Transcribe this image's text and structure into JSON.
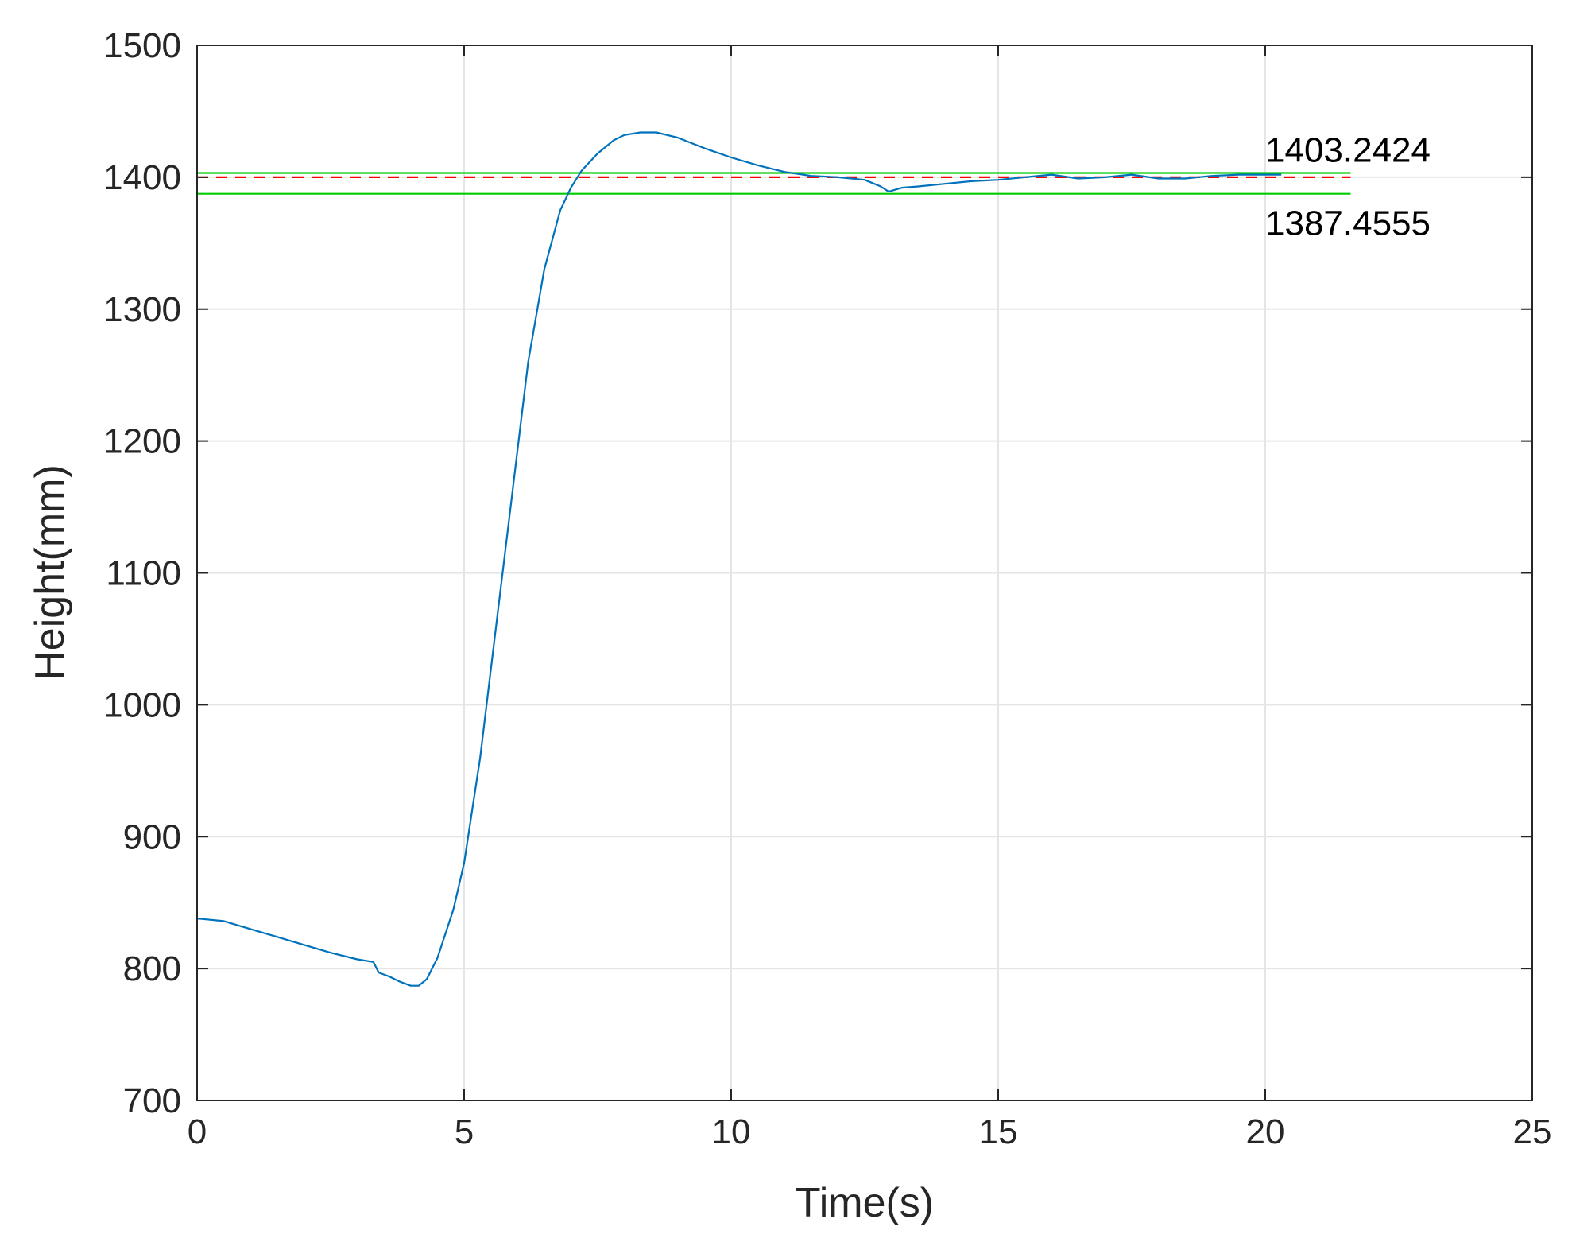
{
  "chart_data": {
    "type": "line",
    "title": "",
    "xlabel": "Time(s)",
    "ylabel": "Height(mm)",
    "xlim": [
      0,
      25
    ],
    "ylim": [
      700,
      1500
    ],
    "xticks": [
      0,
      5,
      10,
      15,
      20,
      25
    ],
    "yticks": [
      700,
      800,
      900,
      1000,
      1100,
      1200,
      1300,
      1400,
      1500
    ],
    "xtick_labels": [
      "0",
      "5",
      "10",
      "15",
      "20",
      "25"
    ],
    "ytick_labels": [
      "700",
      "800",
      "900",
      "1000",
      "1100",
      "1200",
      "1300",
      "1400",
      "1500"
    ],
    "grid": true,
    "legend": "none",
    "series": [
      {
        "color": "#0072BD",
        "style": "solid",
        "x": [
          0,
          0.5,
          1.0,
          1.5,
          2.0,
          2.5,
          3.0,
          3.3,
          3.4,
          3.6,
          3.8,
          4.0,
          4.15,
          4.3,
          4.5,
          4.8,
          5.0,
          5.3,
          5.6,
          5.9,
          6.2,
          6.5,
          6.8,
          7.0,
          7.2,
          7.5,
          7.8,
          8.0,
          8.3,
          8.6,
          9.0,
          9.5,
          10.0,
          10.5,
          11.0,
          11.5,
          12.0,
          12.5,
          12.8,
          12.95,
          13.2,
          13.5,
          14.0,
          14.5,
          15.0,
          15.5,
          16.0,
          16.5,
          17.0,
          17.5,
          18.0,
          18.5,
          19.0,
          19.5,
          20.0,
          20.3
        ],
        "y": [
          838,
          836,
          830,
          824,
          818,
          812,
          807,
          805,
          797,
          794,
          790,
          787,
          787,
          792,
          808,
          845,
          880,
          960,
          1060,
          1160,
          1260,
          1330,
          1375,
          1392,
          1405,
          1418,
          1428,
          1432,
          1434,
          1434,
          1430,
          1422,
          1415,
          1409,
          1404,
          1401,
          1400,
          1398,
          1393,
          1389,
          1392,
          1393,
          1395,
          1397,
          1398,
          1400,
          1402,
          1399,
          1400,
          1402,
          1399,
          1399,
          1401,
          1402,
          1402,
          1402
        ]
      },
      {
        "color": "#00CC00",
        "style": "solid",
        "x": [
          0,
          21.6
        ],
        "y": [
          1403.2424,
          1403.2424
        ]
      },
      {
        "color": "#00CC00",
        "style": "solid",
        "x": [
          0,
          21.6
        ],
        "y": [
          1387.4555,
          1387.4555
        ]
      },
      {
        "color": "#FF0000",
        "style": "dashed",
        "x": [
          0,
          21.6
        ],
        "y": [
          1400,
          1400
        ]
      }
    ],
    "annotations": [
      {
        "text": "1403.2424",
        "x": 20.0,
        "y": 1403.2424
      },
      {
        "text": "1387.4555",
        "x": 20.0,
        "y": 1387.4555
      }
    ]
  }
}
